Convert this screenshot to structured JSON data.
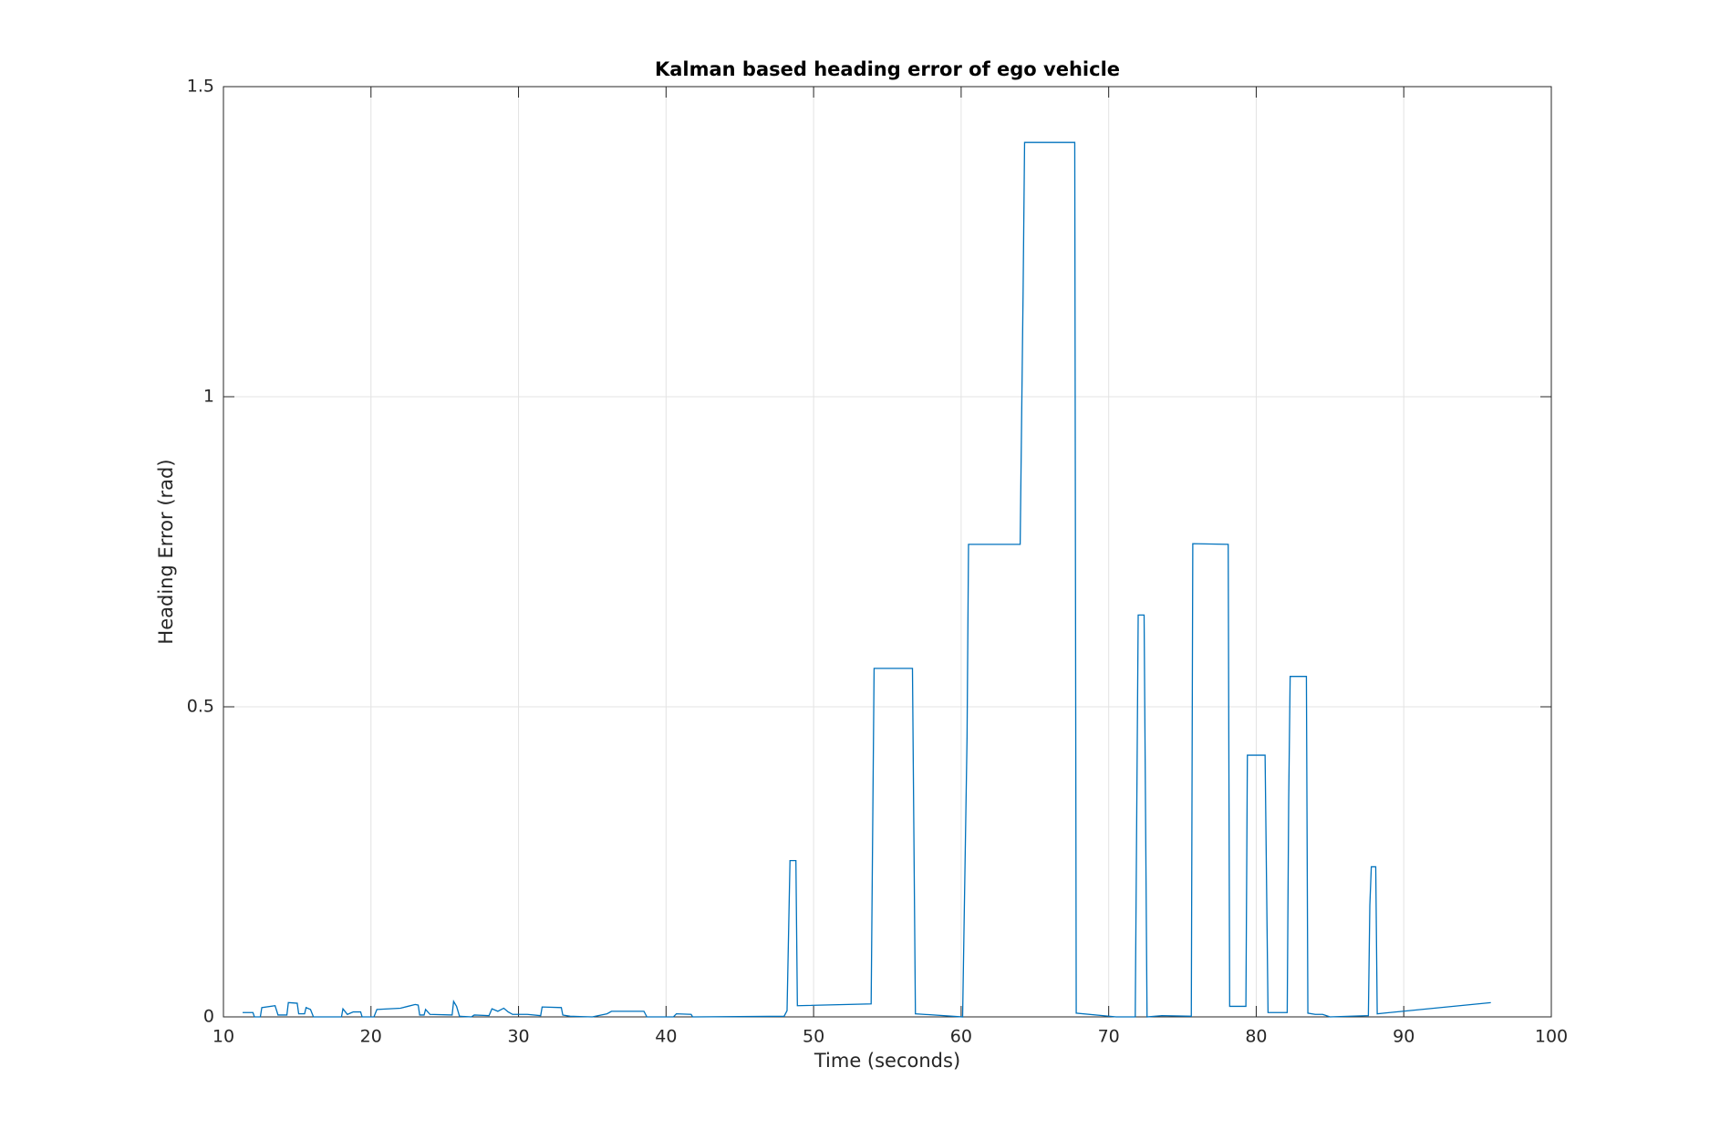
{
  "chart_data": {
    "type": "line",
    "title": "Kalman based heading error of ego vehicle",
    "x_label": "Time (seconds)",
    "y_label": "Heading Error (rad)",
    "xlim": [
      10,
      100
    ],
    "ylim": [
      0,
      1.5
    ],
    "xticks": [
      10,
      20,
      30,
      40,
      50,
      60,
      70,
      80,
      90,
      100
    ],
    "yticks": [
      0,
      0.5,
      1,
      1.5
    ],
    "grid": true,
    "series": [
      {
        "color": "#0072bd",
        "x": [
          11.3,
          12,
          12.1,
          12.5,
          12.6,
          13.5,
          13.7,
          14.3,
          14.4,
          15,
          15.1,
          15.5,
          15.6,
          15.9,
          16.1,
          18,
          18.1,
          18.4,
          18.8,
          19.3,
          19.4,
          20.2,
          20.4,
          22,
          22.5,
          23,
          23.2,
          23.3,
          23.6,
          23.7,
          24,
          25.5,
          25.6,
          25.8,
          26,
          26.8,
          27,
          28,
          28.2,
          28.6,
          29,
          29.3,
          29.6,
          30.6,
          31.5,
          31.6,
          32.9,
          33,
          33.5,
          35,
          36,
          36.3,
          38.5,
          38.7,
          40.5,
          40.7,
          41.7,
          41.8,
          48,
          48.2,
          48.4,
          48.8,
          48.9,
          53.9,
          54.1,
          56.7,
          56.9,
          60.1,
          60.4,
          60.5,
          64,
          64.2,
          64.3,
          67.7,
          67.8,
          70.5,
          71.8,
          72,
          72.4,
          72.6,
          73.6,
          75.6,
          75.7,
          78.1,
          78.2,
          79.3,
          79.4,
          80.6,
          80.8,
          82.1,
          82.2,
          82.3,
          83.4,
          83.5,
          84,
          84.5,
          85,
          87.6,
          87.7,
          87.8,
          88.1,
          88.2,
          95.9
        ],
        "values": [
          0.007,
          0.007,
          0,
          0,
          0.015,
          0.018,
          0.003,
          0.003,
          0.023,
          0.022,
          0.005,
          0.005,
          0.015,
          0.012,
          0,
          0,
          0.013,
          0.004,
          0.008,
          0.008,
          0,
          0,
          0.012,
          0.014,
          0.017,
          0.02,
          0.019,
          0.003,
          0.003,
          0.012,
          0.004,
          0.003,
          0.025,
          0.017,
          0.001,
          0,
          0.003,
          0.002,
          0.013,
          0.009,
          0.014,
          0.008,
          0.004,
          0.004,
          0.002,
          0.016,
          0.015,
          0.003,
          0.001,
          0,
          0.005,
          0.009,
          0.009,
          0,
          0,
          0.005,
          0.004,
          0,
          0.001,
          0.01,
          0.252,
          0.252,
          0.018,
          0.021,
          0.562,
          0.562,
          0.005,
          0,
          0.45,
          0.762,
          0.762,
          1.17,
          1.41,
          1.41,
          0.006,
          0,
          0,
          0.648,
          0.648,
          0,
          0.002,
          0.001,
          0.763,
          0.762,
          0.017,
          0.017,
          0.422,
          0.422,
          0.007,
          0.007,
          0.35,
          0.549,
          0.549,
          0.006,
          0.004,
          0.004,
          0,
          0.002,
          0.18,
          0.242,
          0.242,
          0.005,
          0.023
        ]
      }
    ]
  }
}
